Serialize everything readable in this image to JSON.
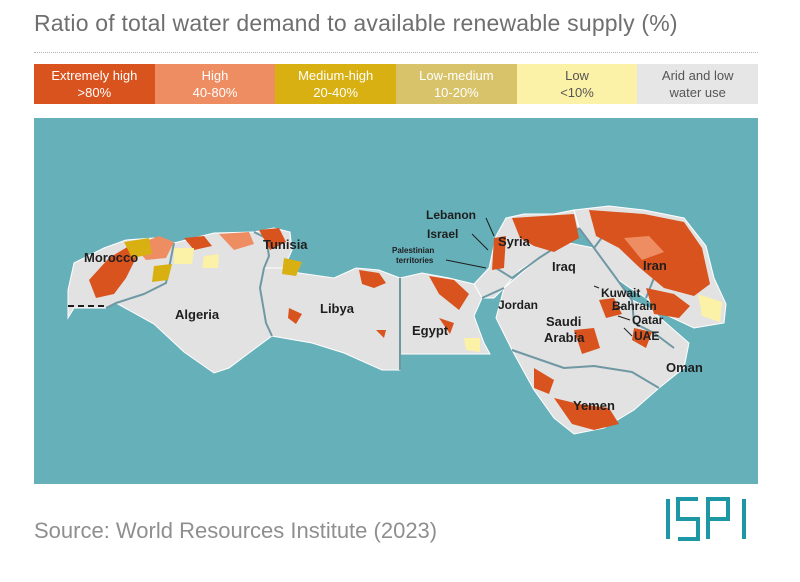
{
  "title": "Ratio of total water demand to available renewable supply (%)",
  "legend": [
    {
      "label": "Extremely high",
      "range": ">80%",
      "color": "#d9531e",
      "text_color": "#ffffff"
    },
    {
      "label": "High",
      "range": "40-80%",
      "color": "#ef8d62",
      "text_color": "#ffffff"
    },
    {
      "label": "Medium-high",
      "range": "20-40%",
      "color": "#d8b012",
      "text_color": "#ffffff"
    },
    {
      "label": "Low-medium",
      "range": "10-20%",
      "color": "#d8c36a",
      "text_color": "#ffffff"
    },
    {
      "label": "Low",
      "range": "<10%",
      "color": "#fbf1a7",
      "text_color": "#555555"
    },
    {
      "label": "Arid and low",
      "range": "water use",
      "color": "#e6e6e6",
      "text_color": "#555555"
    }
  ],
  "countries": {
    "morocco": "Morocco",
    "algeria": "Algeria",
    "tunisia": "Tunisia",
    "libya": "Libya",
    "egypt": "Egypt",
    "lebanon": "Lebanon",
    "israel": "Israel",
    "palestinian_1": "Palestinian",
    "palestinian_2": "territories",
    "syria": "Syria",
    "jordan": "Jordan",
    "iraq": "Iraq",
    "iran": "Iran",
    "saudi_1": "Saudi",
    "saudi_2": "Arabia",
    "kuwait": "Kuwait",
    "bahrain": "Bahrain",
    "qatar": "Qatar",
    "uae": "UAE",
    "oman": "Oman",
    "yemen": "Yemen"
  },
  "colors": {
    "sea": "#66b0ba",
    "land": "#e2e2e2",
    "border": "#6f98a3",
    "extremely_high": "#d9531e",
    "high": "#ef8d62",
    "medium_high": "#d8b012",
    "low": "#fbf1a7",
    "logo": "#1c97a3"
  },
  "source": "Source: World Resources Institute (2023)",
  "logo_text": "ISPI"
}
